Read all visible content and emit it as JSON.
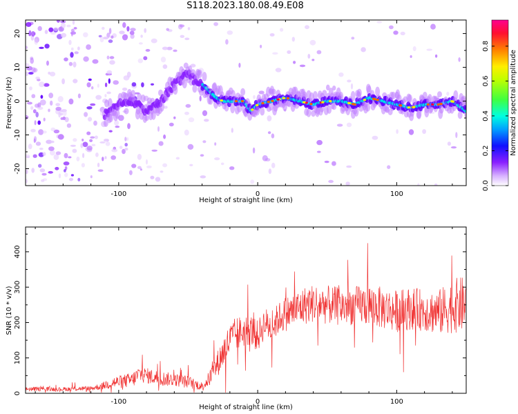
{
  "page_title": "S118.2023.180.08.49.E08",
  "colors": {
    "snr_line": "#f03030",
    "ridge_colors": [
      "#ffffff",
      "#e6ccff",
      "#c080ff",
      "#8a20ff",
      "#6000ff",
      "#2a2aff",
      "#00b4ff",
      "#00ffd0",
      "#50ff50",
      "#ffee00",
      "#ff6000",
      "#ff0040"
    ]
  },
  "chart_data": [
    {
      "type": "heatmap",
      "xlabel": "Height of straight line (km)",
      "ylabel": "Frequency (Hz)",
      "xlim": [
        -167,
        150
      ],
      "ylim": [
        -25,
        24
      ],
      "xticks": [
        -100,
        0,
        100
      ],
      "yticks": [
        -20,
        -10,
        0,
        10,
        20
      ],
      "ridge": {
        "x": [
          -110,
          -100,
          -90,
          -80,
          -70,
          -60,
          -50,
          -45,
          -40,
          -35,
          -30,
          -25,
          -20,
          -10,
          -5,
          0,
          10,
          20,
          30,
          40,
          50,
          60,
          70,
          80,
          90,
          100,
          110,
          120,
          130,
          140,
          150
        ],
        "y": [
          -4,
          -1,
          0,
          -3,
          0,
          5,
          8,
          6,
          5,
          3,
          1,
          0,
          0,
          0,
          -3,
          -1,
          0,
          1,
          0,
          -1,
          0,
          0,
          -1,
          1,
          0,
          -1,
          -2,
          -1,
          -1,
          0,
          -3
        ]
      },
      "colorbar": {
        "label": "Normalized spectral amplitude",
        "ticks": [
          "0.0",
          "0.2",
          "0.4",
          "0.6",
          "0.8"
        ],
        "range": [
          0,
          0.95
        ]
      }
    },
    {
      "type": "line",
      "xlabel": "Height of straight line (km)",
      "ylabel": "SNR (10 * v/v)",
      "xlim": [
        -167,
        150
      ],
      "ylim": [
        0,
        470
      ],
      "xticks": [
        -100,
        0,
        100
      ],
      "yticks": [
        0,
        100,
        200,
        300,
        400
      ],
      "series": [
        {
          "x": [
            -167,
            -140,
            -120,
            -112,
            -105,
            -100,
            -90,
            -85,
            -80,
            -70,
            -60,
            -50,
            -40,
            -35,
            -30,
            -25,
            -20,
            -15,
            -10,
            -5,
            0,
            5,
            10,
            15,
            20,
            25,
            30,
            35,
            40,
            50,
            60,
            70,
            80,
            90,
            100,
            110,
            120,
            130,
            140,
            145,
            150
          ],
          "values": [
            12,
            12,
            14,
            20,
            30,
            32,
            38,
            55,
            50,
            42,
            38,
            32,
            20,
            40,
            75,
            115,
            150,
            168,
            175,
            180,
            160,
            200,
            185,
            212,
            225,
            232,
            240,
            250,
            255,
            250,
            245,
            248,
            250,
            240,
            232,
            240,
            235,
            228,
            245,
            250,
            250
          ],
          "noise": [
            6,
            6,
            7,
            10,
            18,
            18,
            22,
            25,
            22,
            22,
            18,
            18,
            12,
            22,
            35,
            45,
            50,
            50,
            45,
            45,
            45,
            45,
            45,
            45,
            50,
            50,
            55,
            55,
            55,
            55,
            55,
            55,
            60,
            60,
            60,
            60,
            60,
            65,
            75,
            80,
            80
          ]
        }
      ]
    }
  ]
}
